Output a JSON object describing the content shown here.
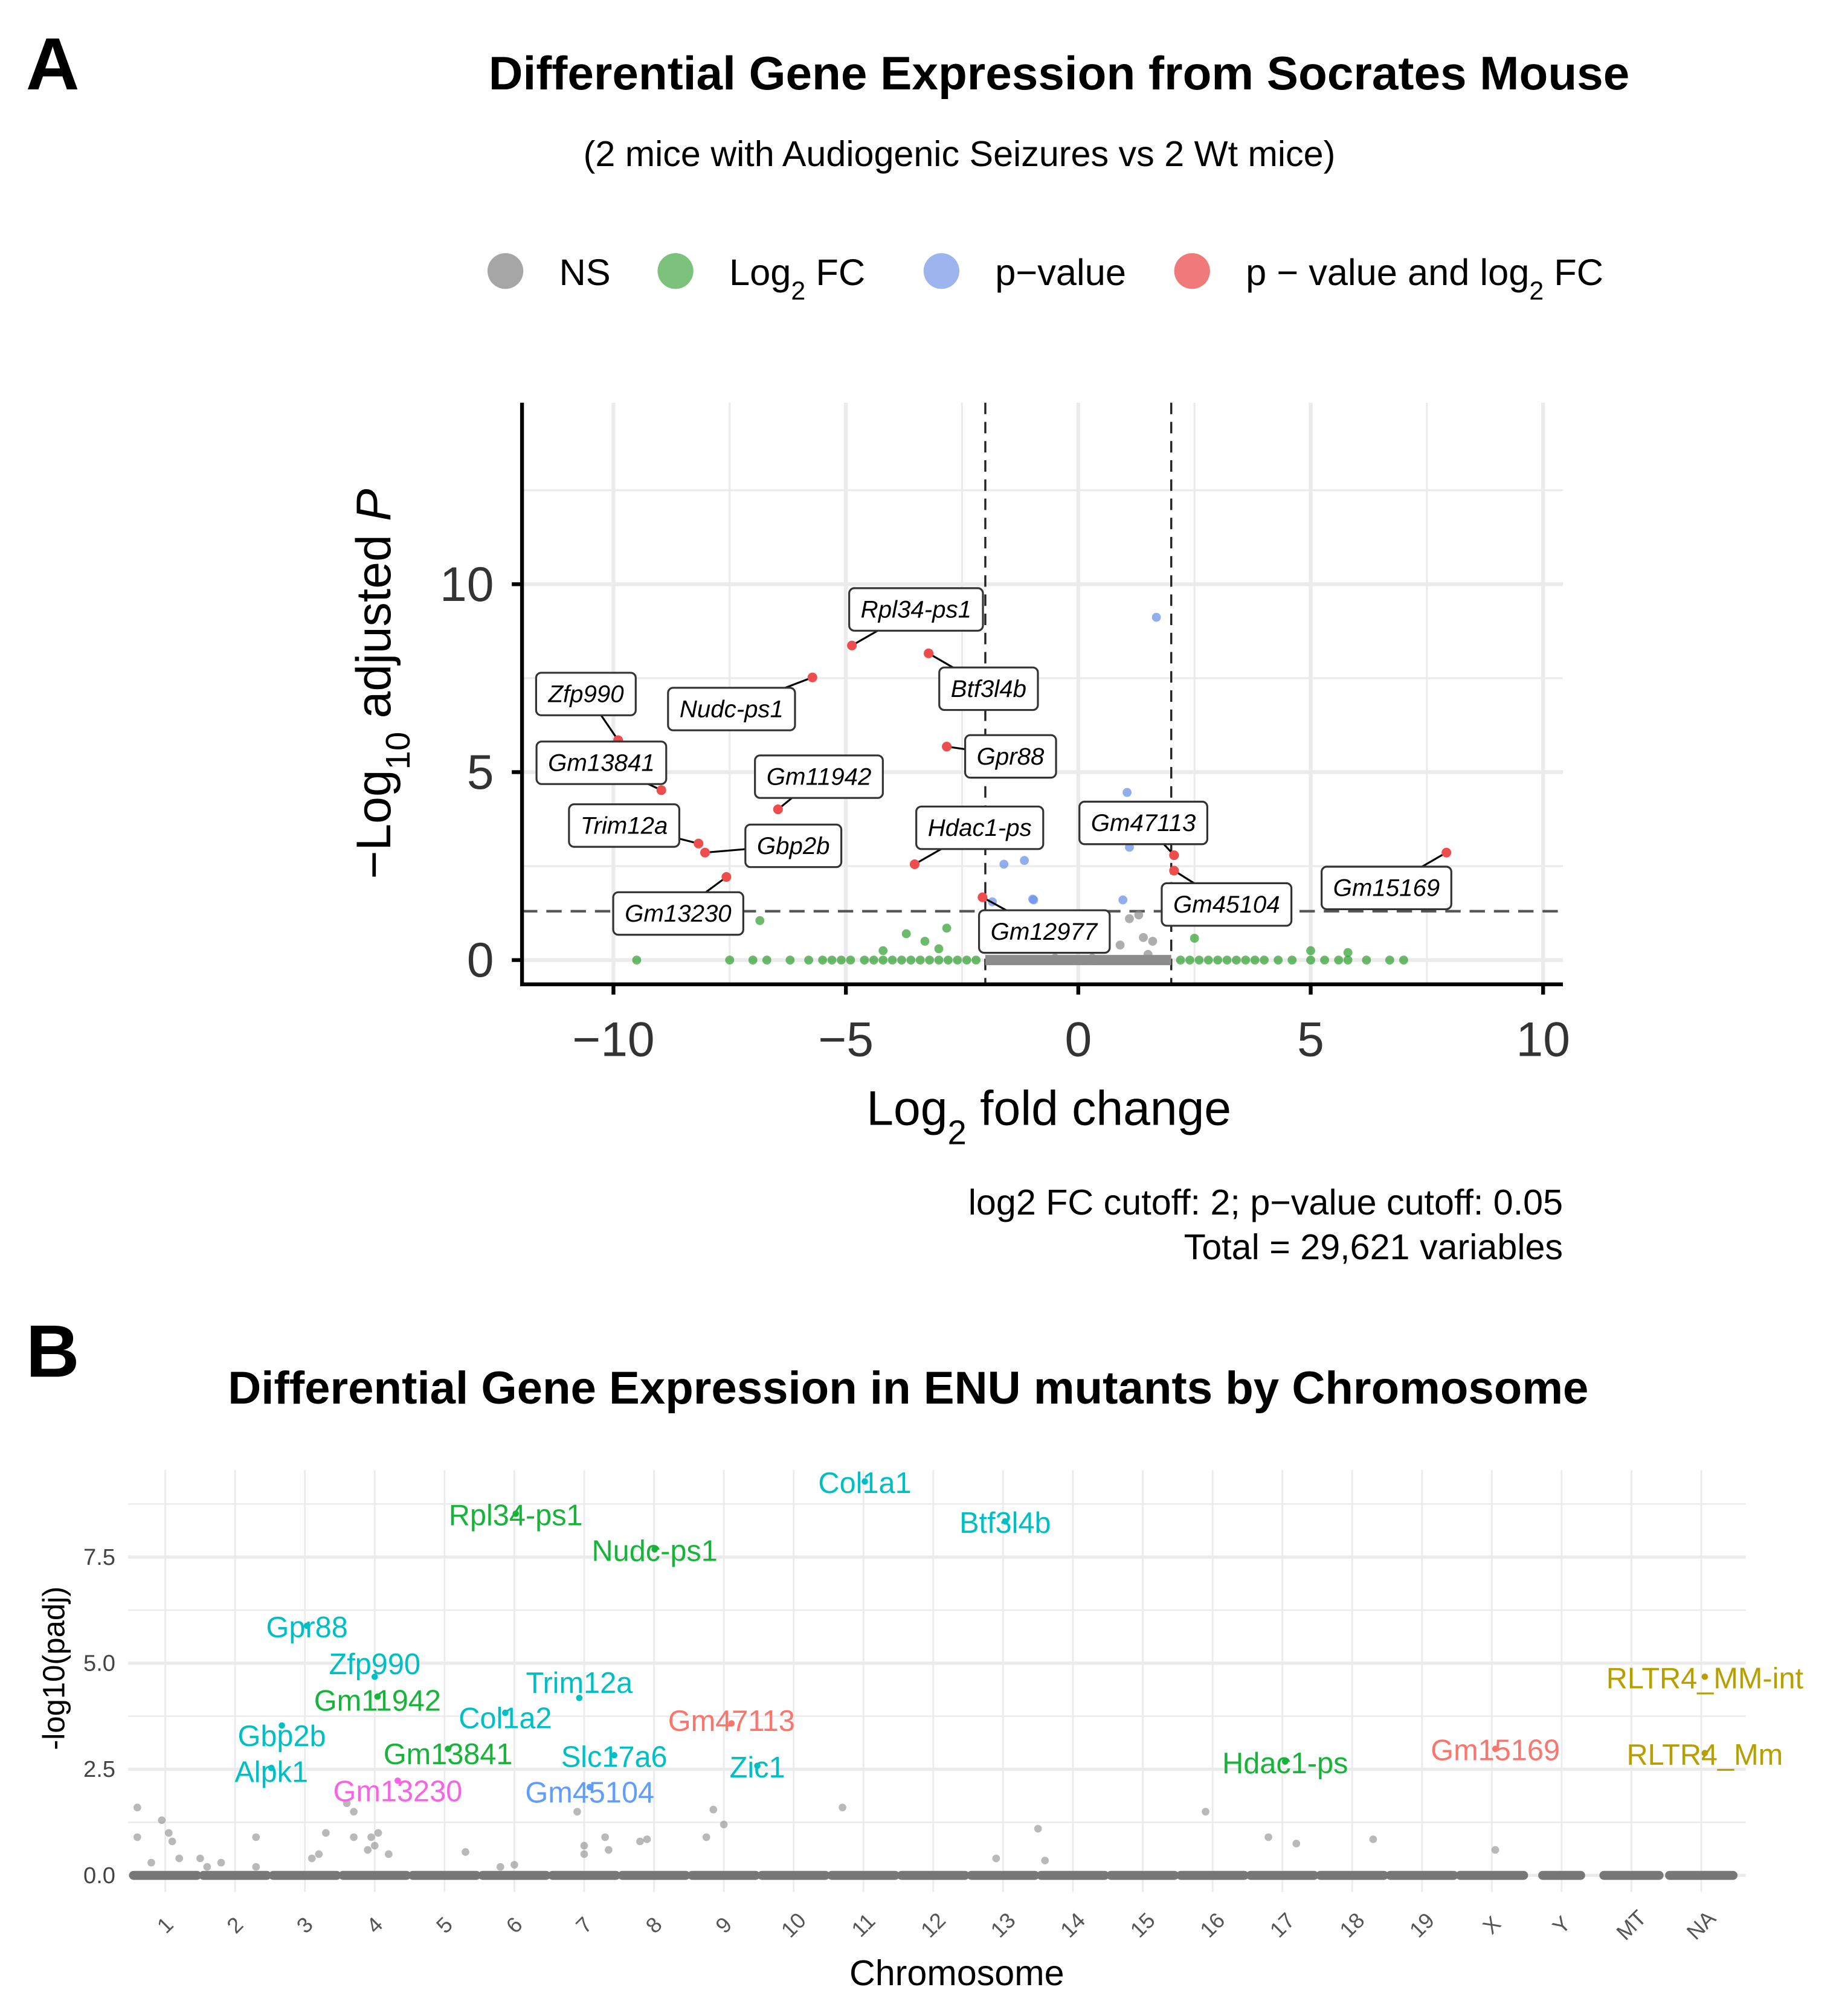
{
  "panel_a": {
    "letter": "A",
    "title": "Differential Gene Expression from Socrates Mouse",
    "subtitle": "(2 mice with Audiogenic Seizures vs 2 Wt mice)",
    "legend": [
      {
        "main": "NS",
        "sub": "",
        "rest": "",
        "color": "#a6a6a6"
      },
      {
        "main": "Log",
        "sub": "2",
        "rest": " FC",
        "color": "#7cc27c"
      },
      {
        "main": "p−value",
        "sub": "",
        "rest": "",
        "color": "#9db5ee"
      },
      {
        "main": "p − value and log",
        "sub": "2",
        "rest": " FC",
        "color": "#f07a7a"
      }
    ],
    "caption_line1": "log2 FC cutoff: 2; p−value cutoff: 0.05",
    "caption_line2": "Total = 29,621 variables"
  },
  "panel_b": {
    "letter": "B",
    "title": "Differential Gene Expression in ENU mutants by Chromosome"
  },
  "chart_data": [
    {
      "type": "scatter",
      "name": "volcano",
      "xlabel_main": "Log",
      "xlabel_sub": "2",
      "xlabel_rest": " fold change",
      "ylabel_main": "−Log",
      "ylabel_sub": "10",
      "ylabel_rest": " adjusted ",
      "ylabel_italic": "P",
      "xlim": [
        -12,
        10.5
      ],
      "ylim": [
        -0.65,
        14.8
      ],
      "xticks": [
        {
          "v": -10,
          "label": "−10"
        },
        {
          "v": -5,
          "label": "−5"
        },
        {
          "v": 0,
          "label": "0"
        },
        {
          "v": 5,
          "label": "5"
        },
        {
          "v": 10,
          "label": "10"
        }
      ],
      "yticks": [
        {
          "v": 0,
          "label": "0"
        },
        {
          "v": 5,
          "label": "5"
        },
        {
          "v": 10,
          "label": "10"
        }
      ],
      "fc_cutoff": 2,
      "p_cutoff_log10": 1.3,
      "colors": {
        "ns": "#8c8c8c",
        "fc": "#2e9e2e",
        "p": "#6f93e8",
        "both": "#ee4d4d"
      },
      "labeled_points": [
        {
          "gene": "Rpl34-ps1",
          "x": -4.87,
          "y": 8.37,
          "lx": -3.49,
          "ly": 9.35
        },
        {
          "gene": "Btf3l4b",
          "x": -3.22,
          "y": 8.16,
          "lx": -1.93,
          "ly": 7.24
        },
        {
          "gene": "Nudc-ps1",
          "x": -5.72,
          "y": 7.52,
          "lx": -7.46,
          "ly": 6.7
        },
        {
          "gene": "Zfp990",
          "x": -9.9,
          "y": 5.85,
          "lx": -10.59,
          "ly": 7.1
        },
        {
          "gene": "Gpr88",
          "x": -2.83,
          "y": 5.68,
          "lx": -1.46,
          "ly": 5.44
        },
        {
          "gene": "Gm13841",
          "x": -8.97,
          "y": 4.52,
          "lx": -10.26,
          "ly": 5.27
        },
        {
          "gene": "Gm11942",
          "x": -6.46,
          "y": 4.01,
          "lx": -5.58,
          "ly": 4.9
        },
        {
          "gene": "Trim12a",
          "x": -8.17,
          "y": 3.1,
          "lx": -9.77,
          "ly": 3.6
        },
        {
          "gene": "Gbp2b",
          "x": -8.03,
          "y": 2.86,
          "lx": -6.13,
          "ly": 3.06
        },
        {
          "gene": "Hdac1-ps",
          "x": -3.52,
          "y": 2.55,
          "lx": -2.12,
          "ly": 3.54
        },
        {
          "gene": "Gm47113",
          "x": 2.06,
          "y": 2.79,
          "lx": 1.4,
          "ly": 3.67
        },
        {
          "gene": "Gm13230",
          "x": -7.57,
          "y": 2.21,
          "lx": -8.61,
          "ly": 1.26
        },
        {
          "gene": "Gm12977",
          "x": -2.06,
          "y": 1.67,
          "lx": -0.74,
          "ly": 0.78
        },
        {
          "gene": "Gm45104",
          "x": 2.06,
          "y": 2.38,
          "lx": 3.19,
          "ly": 1.5
        },
        {
          "gene": "Gm15169",
          "x": 7.92,
          "y": 2.86,
          "lx": 6.63,
          "ly": 1.94
        }
      ],
      "p_points": [
        [
          1.68,
          9.12
        ],
        [
          1.05,
          4.46
        ],
        [
          0.9,
          3.4
        ],
        [
          1.1,
          3.0
        ],
        [
          -1.16,
          2.65
        ],
        [
          -1.6,
          2.55
        ],
        [
          -0.96,
          1.6
        ],
        [
          -0.98,
          1.62
        ],
        [
          0.96,
          1.6
        ],
        [
          -1.85,
          1.55
        ]
      ],
      "fc_points": [
        [
          -6.85,
          1.05
        ],
        [
          -3.7,
          0.7
        ],
        [
          -2.83,
          0.85
        ],
        [
          -3.3,
          0.5
        ],
        [
          2.5,
          0.58
        ],
        [
          -4.2,
          0.25
        ],
        [
          -3.0,
          0.3
        ],
        [
          5.0,
          0.25
        ],
        [
          5.8,
          0.2
        ],
        [
          -9.5,
          0
        ],
        [
          -7.5,
          0
        ],
        [
          -7.0,
          0
        ],
        [
          -6.7,
          0
        ],
        [
          -6.2,
          0
        ],
        [
          -5.8,
          0
        ],
        [
          -5.5,
          0
        ],
        [
          -5.3,
          0
        ],
        [
          -5.1,
          0
        ],
        [
          -4.9,
          0
        ],
        [
          -4.6,
          0
        ],
        [
          -4.4,
          0
        ],
        [
          -4.2,
          0
        ],
        [
          -4.0,
          0
        ],
        [
          -3.8,
          0
        ],
        [
          -3.6,
          0
        ],
        [
          -3.4,
          0
        ],
        [
          -3.2,
          0
        ],
        [
          -3.0,
          0
        ],
        [
          -2.8,
          0
        ],
        [
          -2.6,
          0
        ],
        [
          -2.4,
          0
        ],
        [
          -2.2,
          0
        ],
        [
          2.2,
          0
        ],
        [
          2.4,
          0
        ],
        [
          2.6,
          0
        ],
        [
          2.8,
          0
        ],
        [
          3.0,
          0
        ],
        [
          3.2,
          0
        ],
        [
          3.4,
          0
        ],
        [
          3.6,
          0
        ],
        [
          3.8,
          0
        ],
        [
          4.0,
          0
        ],
        [
          4.3,
          0
        ],
        [
          4.6,
          0
        ],
        [
          5.0,
          0
        ],
        [
          5.3,
          0
        ],
        [
          5.6,
          0
        ],
        [
          5.8,
          0
        ],
        [
          6.2,
          0
        ],
        [
          6.7,
          0
        ],
        [
          7.0,
          0
        ]
      ],
      "ns_points": [
        [
          1.1,
          1.1
        ],
        [
          1.3,
          1.2
        ],
        [
          1.4,
          0.6
        ],
        [
          1.6,
          0.5
        ],
        [
          1.5,
          0.15
        ],
        [
          0.9,
          0.4
        ],
        [
          -0.5,
          0.05
        ],
        [
          0.3,
          0.05
        ]
      ]
    },
    {
      "type": "scatter",
      "name": "chromosome-manhattan",
      "xlabel": "Chromosome",
      "ylabel": "-log10(padj)",
      "ylim": [
        -0.3,
        9.5
      ],
      "categories": [
        "1",
        "2",
        "3",
        "4",
        "5",
        "6",
        "7",
        "8",
        "9",
        "10",
        "11",
        "12",
        "13",
        "14",
        "15",
        "16",
        "17",
        "18",
        "19",
        "X",
        "Y",
        "MT",
        "NA"
      ],
      "yticks": [
        {
          "v": 0,
          "label": "0.0"
        },
        {
          "v": 2.5,
          "label": "2.5"
        },
        {
          "v": 5,
          "label": "5.0"
        },
        {
          "v": 7.5,
          "label": "7.5"
        }
      ],
      "colors": {
        "cyan": "#00bfc4",
        "green": "#17b33a",
        "red": "#f8766d",
        "magenta": "#f564e3",
        "blue": "#619cff",
        "olive": "#b79f00",
        "grey": "#8a8a8a"
      },
      "labels": [
        {
          "gene": "Col1a1",
          "pos": 11.02,
          "y": 9.1,
          "color": "cyan"
        },
        {
          "gene": "Rpl34-ps1",
          "pos": 6.02,
          "y": 8.34,
          "color": "green"
        },
        {
          "gene": "Btf3l4b",
          "pos": 13.03,
          "y": 8.16,
          "color": "cyan"
        },
        {
          "gene": "Nudc-ps1",
          "pos": 8.01,
          "y": 7.5,
          "color": "green"
        },
        {
          "gene": "Gpr88",
          "pos": 3.03,
          "y": 5.7,
          "color": "cyan"
        },
        {
          "gene": "Zfp990",
          "pos": 4.0,
          "y": 4.5,
          "color": "cyan"
        },
        {
          "gene": "Gm11942",
          "pos": 4.04,
          "y": 4.03,
          "color": "green"
        },
        {
          "gene": "Trim12a",
          "pos": 6.93,
          "y": 4.0,
          "color": "cyan"
        },
        {
          "gene": "Col1a2",
          "pos": 5.87,
          "y": 3.65,
          "color": "cyan"
        },
        {
          "gene": "Gbp2b",
          "pos": 2.67,
          "y": 3.35,
          "color": "cyan"
        },
        {
          "gene": "Gm47113",
          "pos": 9.11,
          "y": 3.4,
          "color": "red"
        },
        {
          "gene": "Gm13841",
          "pos": 5.05,
          "y": 2.8,
          "color": "green"
        },
        {
          "gene": "Slc17a6",
          "pos": 7.43,
          "y": 2.65,
          "color": "cyan"
        },
        {
          "gene": "Zic1",
          "pos": 9.48,
          "y": 2.4,
          "color": "cyan"
        },
        {
          "gene": "Alpk1",
          "pos": 2.52,
          "y": 2.35,
          "color": "cyan"
        },
        {
          "gene": "Gm13230",
          "pos": 4.33,
          "y": 2.05,
          "color": "magenta"
        },
        {
          "gene": "Gm45104",
          "pos": 7.08,
          "y": 1.9,
          "color": "blue"
        },
        {
          "gene": "Hdac1-ps",
          "pos": 17.04,
          "y": 2.5,
          "color": "green"
        },
        {
          "gene": "Gm15169",
          "pos": 20.05,
          "y": 2.8,
          "color": "red"
        },
        {
          "gene": "RLTR4_MM-int",
          "pos": 23.05,
          "y": 4.5,
          "color": "olive"
        },
        {
          "gene": "RLTR4_Mm",
          "pos": 23.05,
          "y": 2.7,
          "color": "olive"
        }
      ],
      "grey_points": [
        [
          0.6,
          1.6
        ],
        [
          0.6,
          0.9
        ],
        [
          0.8,
          0.3
        ],
        [
          0.95,
          1.3
        ],
        [
          1.05,
          1.0
        ],
        [
          1.1,
          0.8
        ],
        [
          1.2,
          0.4
        ],
        [
          1.5,
          0.4
        ],
        [
          1.6,
          0.2
        ],
        [
          1.8,
          0.3
        ],
        [
          2.3,
          0.9
        ],
        [
          2.3,
          0.2
        ],
        [
          3.1,
          0.4
        ],
        [
          3.2,
          0.5
        ],
        [
          3.3,
          1.0
        ],
        [
          3.6,
          1.7
        ],
        [
          3.7,
          1.5
        ],
        [
          3.7,
          0.9
        ],
        [
          3.9,
          0.6
        ],
        [
          3.95,
          0.9
        ],
        [
          4.0,
          0.7
        ],
        [
          4.05,
          1.0
        ],
        [
          4.2,
          0.5
        ],
        [
          5.3,
          0.55
        ],
        [
          5.8,
          0.2
        ],
        [
          6.0,
          0.25
        ],
        [
          6.9,
          1.5
        ],
        [
          7.0,
          0.7
        ],
        [
          7.0,
          0.5
        ],
        [
          7.3,
          0.9
        ],
        [
          7.35,
          0.6
        ],
        [
          7.8,
          0.8
        ],
        [
          7.9,
          0.85
        ],
        [
          8.75,
          0.9
        ],
        [
          8.85,
          1.55
        ],
        [
          9.0,
          1.2
        ],
        [
          10.7,
          1.6
        ],
        [
          12.9,
          0.4
        ],
        [
          13.5,
          1.1
        ],
        [
          13.6,
          0.35
        ],
        [
          15.9,
          1.5
        ],
        [
          16.8,
          0.9
        ],
        [
          17.2,
          0.75
        ],
        [
          18.3,
          0.85
        ],
        [
          20.05,
          0.6
        ]
      ]
    }
  ]
}
